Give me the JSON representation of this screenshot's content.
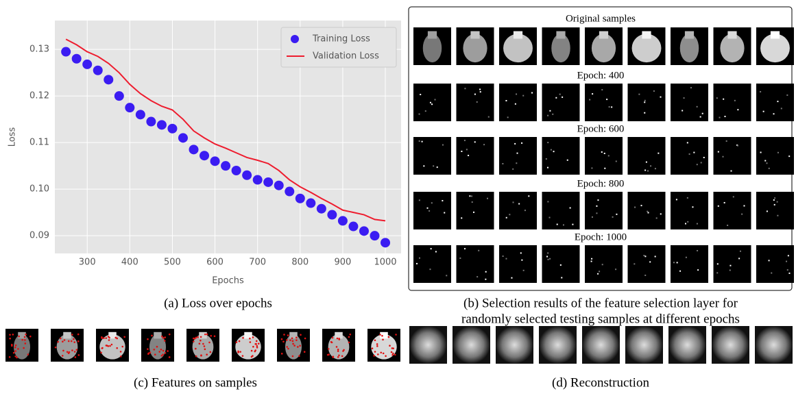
{
  "chart_data": {
    "type": "line-scatter",
    "xlabel": "Epochs",
    "ylabel": "Loss",
    "x": [
      250,
      275,
      300,
      325,
      350,
      375,
      400,
      425,
      450,
      475,
      500,
      525,
      550,
      575,
      600,
      625,
      650,
      675,
      700,
      725,
      750,
      775,
      800,
      825,
      850,
      875,
      900,
      925,
      950,
      975,
      1000
    ],
    "series": [
      {
        "name": "Training Loss",
        "color": "#3b1cf2",
        "style": "scatter",
        "values": [
          0.1295,
          0.128,
          0.1268,
          0.1255,
          0.1235,
          0.12,
          0.1175,
          0.116,
          0.1145,
          0.1138,
          0.113,
          0.111,
          0.1085,
          0.1072,
          0.106,
          0.105,
          0.104,
          0.103,
          0.102,
          0.1015,
          0.1008,
          0.0995,
          0.098,
          0.097,
          0.0958,
          0.0945,
          0.0932,
          0.092,
          0.091,
          0.09,
          0.0885
        ]
      },
      {
        "name": "Validation Loss",
        "color": "#ee1c2e",
        "style": "line",
        "values": [
          0.1322,
          0.131,
          0.1295,
          0.1285,
          0.127,
          0.125,
          0.1225,
          0.1205,
          0.119,
          0.1178,
          0.117,
          0.115,
          0.1125,
          0.111,
          0.1097,
          0.1088,
          0.1078,
          0.1068,
          0.1062,
          0.1055,
          0.104,
          0.102,
          0.1005,
          0.0993,
          0.098,
          0.0968,
          0.0955,
          0.095,
          0.0945,
          0.0935,
          0.0932
        ]
      }
    ],
    "xlim": [
      224,
      1037
    ],
    "ylim": [
      0.0862,
      0.1362
    ],
    "xticks": [
      300,
      400,
      500,
      600,
      700,
      800,
      900,
      1000
    ],
    "yticks": [
      0.09,
      {
        "value": 0.1,
        "label": "0.10"
      },
      0.11,
      0.12,
      0.13
    ],
    "grid": true,
    "legend": "upper right"
  },
  "panel_b": {
    "header": "Original samples",
    "rows": [
      "Epoch: 400",
      "Epoch: 600",
      "Epoch: 800",
      "Epoch: 1000"
    ]
  },
  "captions": {
    "a": "(a) Loss over epochs",
    "b1": "(b) Selection results of the feature selection layer for",
    "b2": "randomly selected testing samples at different epochs",
    "c": "(c) Features on samples",
    "d": "(d) Reconstruction"
  }
}
